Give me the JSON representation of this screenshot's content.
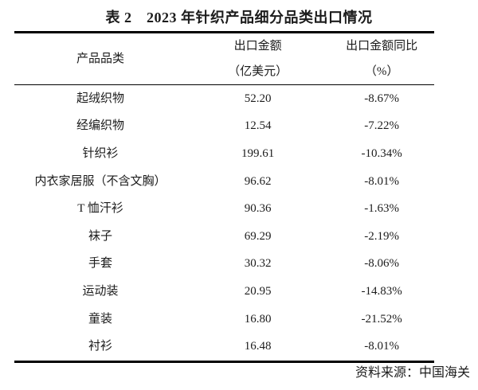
{
  "page": {
    "background": "#ffffff",
    "text_color": "#1c1c1c",
    "rule_color": "#000000"
  },
  "title": "表 2　2023 年针织产品细分品类出口情况",
  "table": {
    "header": {
      "col1_line1": "产品品类",
      "col2_line1": "出口金额",
      "col2_line2": "（亿美元）",
      "col3_line1": "出口金额同比",
      "col3_line2": "（%）"
    },
    "rows": [
      {
        "category": "起绒织物",
        "export_value": "52.20",
        "yoy": "-8.67%"
      },
      {
        "category": "经编织物",
        "export_value": "12.54",
        "yoy": "-7.22%"
      },
      {
        "category": "针织衫",
        "export_value": "199.61",
        "yoy": "-10.34%"
      },
      {
        "category": "内衣家居服（不含文胸）",
        "export_value": "96.62",
        "yoy": "-8.01%"
      },
      {
        "category": "T 恤汗衫",
        "export_value": "90.36",
        "yoy": "-1.63%"
      },
      {
        "category": "袜子",
        "export_value": "69.29",
        "yoy": "-2.19%"
      },
      {
        "category": "手套",
        "export_value": "30.32",
        "yoy": "-8.06%"
      },
      {
        "category": "运动装",
        "export_value": "20.95",
        "yoy": "-14.83%"
      },
      {
        "category": "童装",
        "export_value": "16.80",
        "yoy": "-21.52%"
      },
      {
        "category": "衬衫",
        "export_value": "16.48",
        "yoy": "-8.01%"
      }
    ]
  },
  "footer": {
    "source_label": "资料来源：中国海关"
  },
  "chart_data": {
    "type": "table",
    "title": "表 2　2023 年针织产品细分品类出口情况",
    "columns": [
      "产品品类",
      "出口金额（亿美元）",
      "出口金额同比（%）"
    ],
    "rows": [
      [
        "起绒织物",
        52.2,
        "-8.67%"
      ],
      [
        "经编织物",
        12.54,
        "-7.22%"
      ],
      [
        "针织衫",
        199.61,
        "-10.34%"
      ],
      [
        "内衣家居服（不含文胸）",
        96.62,
        "-8.01%"
      ],
      [
        "T 恤汗衫",
        90.36,
        "-1.63%"
      ],
      [
        "袜子",
        69.29,
        "-2.19%"
      ],
      [
        "手套",
        30.32,
        "-8.06%"
      ],
      [
        "运动装",
        20.95,
        "-14.83%"
      ],
      [
        "童装",
        16.8,
        "-21.52%"
      ],
      [
        "衬衫",
        16.48,
        "-8.01%"
      ]
    ],
    "source": "资料来源：中国海关"
  }
}
